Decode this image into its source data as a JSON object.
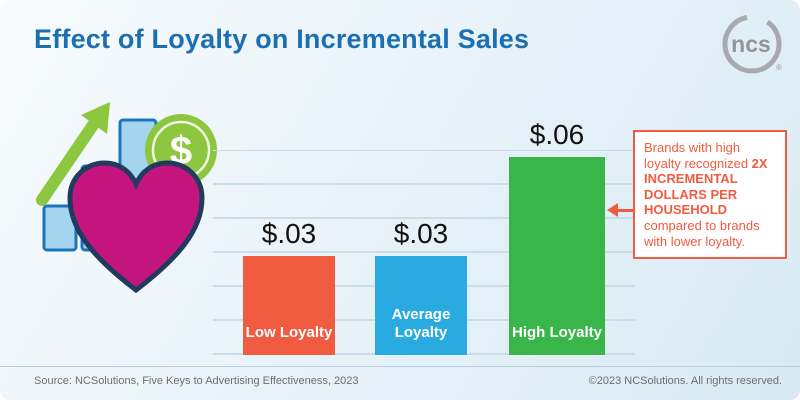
{
  "title": "Effect of Loyalty on Incremental Sales",
  "logo": {
    "text": "ncs",
    "mark": "®"
  },
  "chart_data": {
    "type": "bar",
    "categories": [
      "Low Loyalty",
      "Average Loyalty",
      "High Loyalty"
    ],
    "values": [
      0.03,
      0.03,
      0.06
    ],
    "value_labels": [
      "$.03",
      "$.03",
      "$.06"
    ],
    "bar_colors": [
      "#f15b40",
      "#29abe2",
      "#39b54a"
    ],
    "title": "Effect of Loyalty on Incremental Sales",
    "xlabel": "",
    "ylabel": "",
    "ylim": [
      0,
      0.06
    ],
    "grid": true,
    "legend_position": "none"
  },
  "annotation": {
    "intro": "Brands with high loyalty recognized ",
    "emphasis": "2X INCREMENTAL DOLLARS PER HOUSEHOLD",
    "outro": " compared to brands with lower loyalty."
  },
  "footer": {
    "source": "Source: NCSolutions, Five Keys to Advertising Effectiveness, 2023",
    "copyright": "©2023 NCSolutions. All rights reserved."
  },
  "colors": {
    "title_blue": "#1b6fb5",
    "orange": "#f15b40",
    "blue": "#29abe2",
    "green": "#39b54a",
    "heart_magenta": "#c4157e",
    "arrow_green": "#8dc63f",
    "gridline": "#c8dcea",
    "footer_gray": "#6d6e71"
  }
}
